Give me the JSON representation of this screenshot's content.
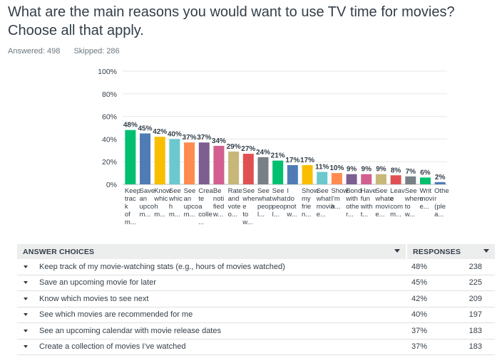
{
  "question": {
    "title": "What are the main reasons you would want to use TV time for movies? Choose all that apply.",
    "answered": "Answered: 498",
    "skipped": "Skipped: 286"
  },
  "chart_data": {
    "type": "bar",
    "yticks": [
      "100%",
      "80%",
      "60%",
      "40%",
      "20%",
      "0%"
    ],
    "ylim": [
      0,
      100
    ],
    "values": [
      48,
      45,
      42,
      40,
      37,
      37,
      34,
      29,
      27,
      24,
      21,
      17,
      17,
      11,
      10,
      9,
      9,
      9,
      8,
      7,
      6,
      2
    ],
    "value_labels": [
      "48%",
      "45%",
      "42%",
      "40%",
      "37%",
      "37%",
      "34%",
      "29%",
      "27%",
      "24%",
      "21%",
      "17%",
      "17%",
      "11%",
      "10%",
      "9%",
      "9%",
      "9%",
      "8%",
      "7%",
      "6%",
      "2%"
    ],
    "colors": [
      "#00bf6f",
      "#507cb6",
      "#f9be00",
      "#6bc8cd",
      "#ff8b4f",
      "#7d5e90",
      "#d25f90",
      "#c7b879",
      "#e05052",
      "#768086",
      "#00bf6f",
      "#507cb6",
      "#f9be00",
      "#6bc8cd",
      "#ff8b4f",
      "#7d5e90",
      "#d25f90",
      "#c7b879",
      "#e05052",
      "#768086",
      "#00bf6f",
      "#507cb6"
    ],
    "category_labels": [
      [
        "Keep",
        "trac",
        "k",
        "of",
        "m..."
      ],
      [
        "Save",
        "an",
        "upco",
        "m..."
      ],
      [
        "Know",
        "whic",
        "h",
        "m..."
      ],
      [
        "See",
        "whic",
        "h",
        "m..."
      ],
      [
        "See",
        "an",
        "upco",
        "m..."
      ],
      [
        "Crea",
        "te",
        "a",
        "colle",
        "..."
      ],
      [
        "Be",
        "noti",
        "fied",
        "w..."
      ],
      [
        "Rate",
        "and",
        "vote",
        "o..."
      ],
      [
        "See",
        "wher",
        "e",
        "to",
        "w..."
      ],
      [
        "See",
        "what",
        "peop",
        "l..."
      ],
      [
        "See",
        "what",
        "peop",
        "l..."
      ],
      [
        "I",
        "do",
        "not",
        "w..."
      ],
      [
        "Show",
        "my",
        "frie",
        "n..."
      ],
      [
        "See",
        "what",
        "movia",
        "e..."
      ],
      [
        "Show",
        "I'm",
        "h..."
      ],
      [
        "Bond",
        "with",
        "othe",
        "r..."
      ],
      [
        "Have",
        "fun",
        "with",
        "t..."
      ],
      [
        "See",
        "whate",
        "movi",
        "e..."
      ],
      [
        "Leav",
        "e",
        "com",
        "m..."
      ],
      [
        "See",
        "where",
        "to",
        "w..."
      ],
      [
        "Writ",
        "movi",
        "e..."
      ],
      [
        "Othe",
        "r",
        "(ple",
        "a..."
      ]
    ]
  },
  "table": {
    "col_choices": "ANSWER CHOICES",
    "col_responses": "RESPONSES",
    "rows": [
      {
        "label": "Keep track of my movie-watching stats (e.g., hours of movies watched)",
        "pct": "48%",
        "count": "238"
      },
      {
        "label": "Save an upcoming movie for later",
        "pct": "45%",
        "count": "225"
      },
      {
        "label": "Know which movies to see next",
        "pct": "42%",
        "count": "209"
      },
      {
        "label": "See which movies are recommended for me",
        "pct": "40%",
        "count": "197"
      },
      {
        "label": "See an upcoming calendar with movie release dates",
        "pct": "37%",
        "count": "183"
      },
      {
        "label": "Create a collection of movies I’ve watched",
        "pct": "37%",
        "count": "183"
      }
    ]
  }
}
